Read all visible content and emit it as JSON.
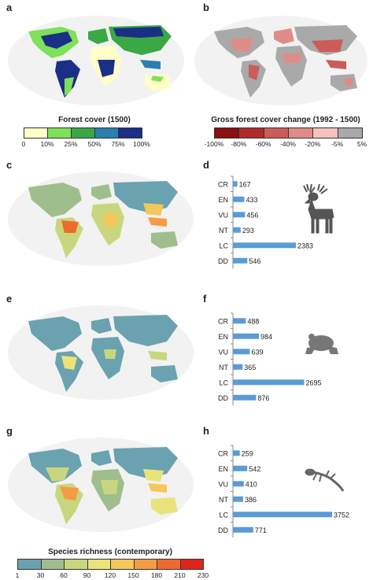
{
  "panels": {
    "a": "a",
    "b": "b",
    "c": "c",
    "d": "d",
    "e": "e",
    "f": "f",
    "g": "g",
    "h": "h"
  },
  "legend_forest": {
    "title": "Forest cover (1500)",
    "ticks": [
      "0",
      "10%",
      "25%",
      "50%",
      "75%",
      "100%"
    ],
    "colors": [
      "#ffffc8",
      "#7fe05a",
      "#3aa844",
      "#2b7fae",
      "#1a2f86"
    ]
  },
  "legend_change": {
    "title": "Gross forest cover change (1992 - 1500)",
    "ticks": [
      "-100%",
      "-80%",
      "-60%",
      "-40%",
      "-20%",
      "-5%",
      "5%"
    ],
    "colors": [
      "#8b0e10",
      "#b02a2a",
      "#cc5c5a",
      "#e08c86",
      "#f2c2bd",
      "#a9a9a9"
    ]
  },
  "legend_richness": {
    "title": "Species richness (contemporary)",
    "ticks": [
      "1",
      "30",
      "60",
      "90",
      "120",
      "150",
      "180",
      "210",
      "230"
    ],
    "colors": [
      "#6aa2b0",
      "#9fbe8e",
      "#c8d77e",
      "#e9e37a",
      "#f5c65a",
      "#f59b43",
      "#ef6a2e",
      "#e2231a"
    ]
  },
  "chart_data": [
    {
      "type": "bar",
      "orientation": "horizontal",
      "categories": [
        "CR",
        "EN",
        "VU",
        "NT",
        "LC",
        "DD"
      ],
      "values": [
        167,
        433,
        456,
        293,
        2383,
        546
      ],
      "xlim": [
        0,
        3752
      ]
    },
    {
      "type": "bar",
      "orientation": "horizontal",
      "categories": [
        "CR",
        "EN",
        "VU",
        "NT",
        "LC",
        "DD"
      ],
      "values": [
        488,
        984,
        639,
        365,
        2695,
        876
      ],
      "xlim": [
        0,
        3752
      ]
    },
    {
      "type": "bar",
      "orientation": "horizontal",
      "categories": [
        "CR",
        "EN",
        "VU",
        "NT",
        "LC",
        "DD"
      ],
      "values": [
        259,
        542,
        410,
        386,
        3752,
        771
      ],
      "xlim": [
        0,
        3752
      ]
    }
  ],
  "icons": {
    "d": "deer-icon",
    "f": "frog-icon",
    "h": "lizard-icon"
  },
  "bar_color": "#5b9bd5"
}
